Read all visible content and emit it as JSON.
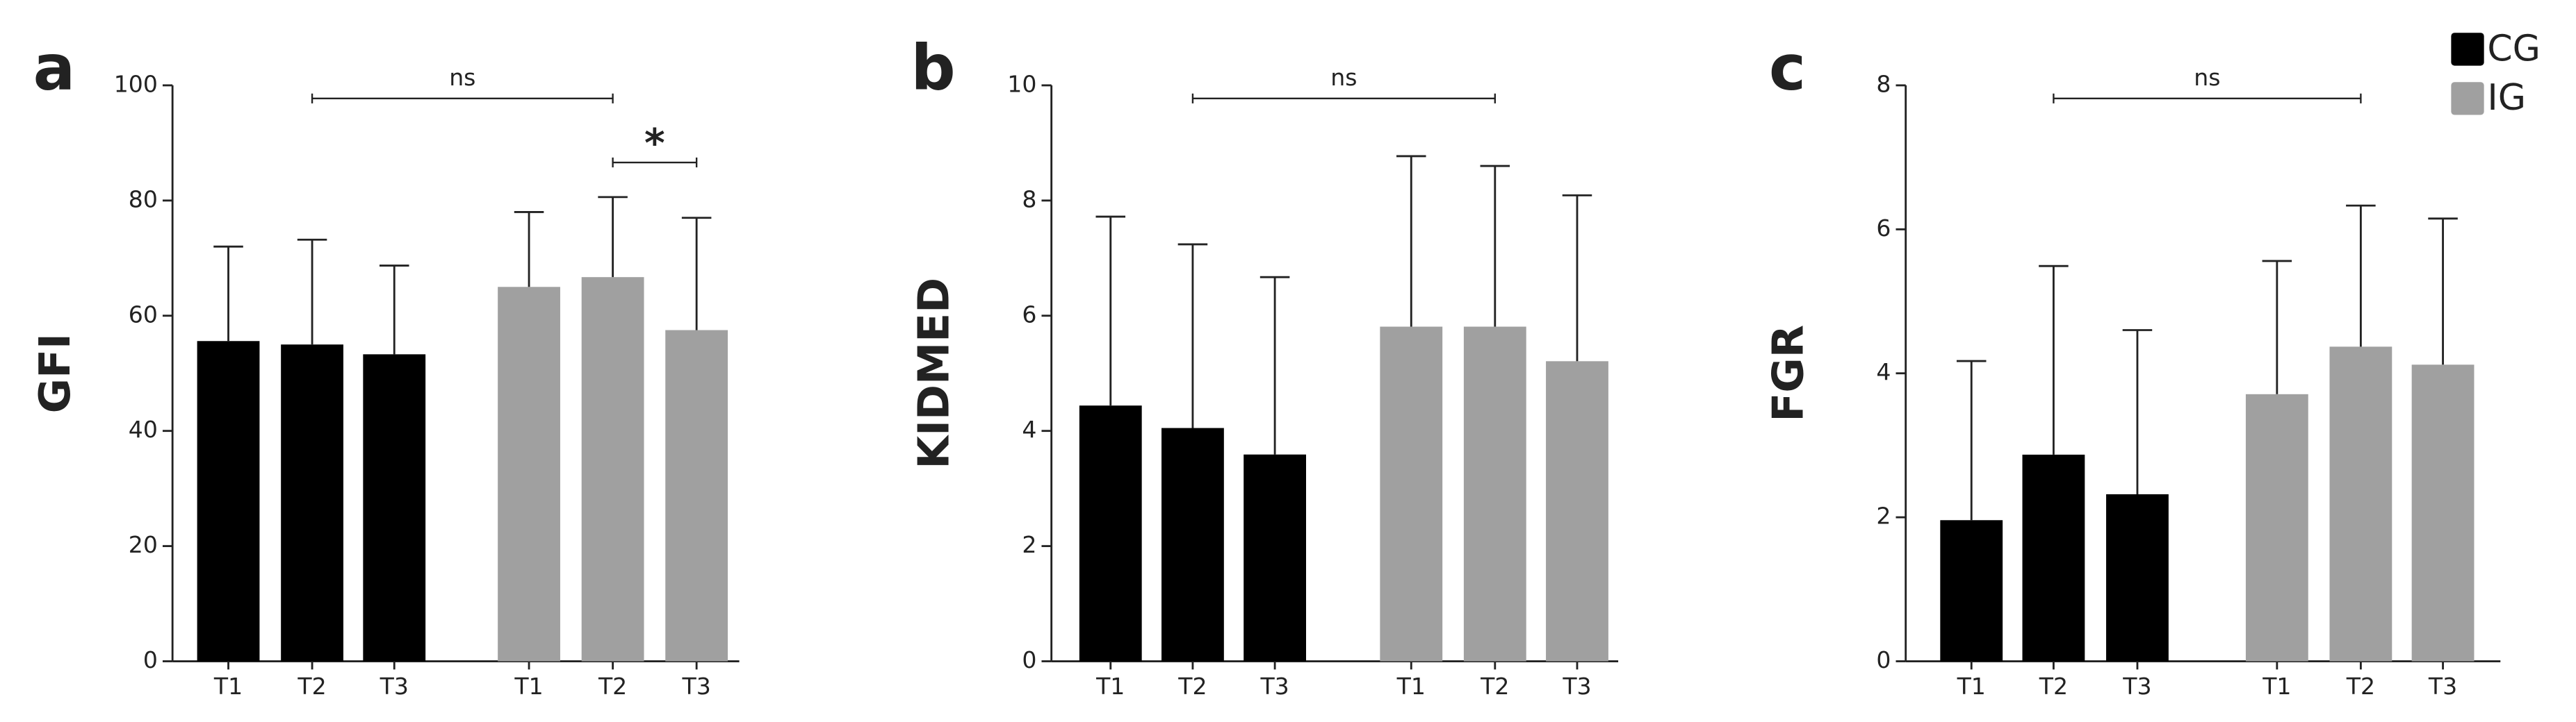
{
  "chart_data": [
    {
      "type": "bar",
      "panel": "a",
      "ylabel": "GFI",
      "categories": [
        "T1",
        "T2",
        "T3",
        "T1",
        "T2",
        "T3"
      ],
      "series": [
        {
          "name": "CG",
          "color": "#000000",
          "values": [
            55.6,
            55,
            53.3,
            null,
            null,
            null
          ],
          "errors": [
            16.4,
            18.2,
            15.4,
            null,
            null,
            null
          ]
        },
        {
          "name": "IG",
          "color": "#a0a0a0",
          "values": [
            null,
            null,
            null,
            65,
            66.7,
            57.5
          ],
          "errors": [
            null,
            null,
            null,
            13,
            13.9,
            19.5
          ]
        }
      ],
      "ylim": [
        0,
        100
      ],
      "yticks": [
        0,
        20,
        40,
        60,
        80,
        100
      ],
      "annotations": [
        "ns",
        "*"
      ]
    },
    {
      "type": "bar",
      "panel": "b",
      "ylabel": "KIDMED",
      "categories": [
        "T1",
        "T2",
        "T3",
        "T1",
        "T2",
        "T3"
      ],
      "series": [
        {
          "name": "CG",
          "color": "#000000",
          "values": [
            4.44,
            4.05,
            3.59,
            null,
            null,
            null
          ],
          "errors": [
            3.28,
            3.19,
            3.08,
            null,
            null,
            null
          ]
        },
        {
          "name": "IG",
          "color": "#a0a0a0",
          "values": [
            null,
            null,
            null,
            5.81,
            5.81,
            5.21
          ],
          "errors": [
            null,
            null,
            null,
            2.96,
            2.79,
            2.88
          ]
        }
      ],
      "ylim": [
        0,
        10
      ],
      "yticks": [
        0,
        2,
        4,
        6,
        8,
        10
      ],
      "annotations": [
        "ns"
      ]
    },
    {
      "type": "bar",
      "panel": "c",
      "ylabel": "FGR",
      "categories": [
        "T1",
        "T2",
        "T3",
        "T1",
        "T2",
        "T3"
      ],
      "series": [
        {
          "name": "CG",
          "color": "#000000",
          "values": [
            1.96,
            2.87,
            2.32,
            null,
            null,
            null
          ],
          "errors": [
            2.21,
            2.62,
            2.28,
            null,
            null,
            null
          ]
        },
        {
          "name": "IG",
          "color": "#a0a0a0",
          "values": [
            null,
            null,
            null,
            3.71,
            4.37,
            4.12
          ],
          "errors": [
            null,
            null,
            null,
            1.85,
            1.96,
            2.03
          ]
        }
      ],
      "ylim": [
        0,
        8
      ],
      "yticks": [
        0,
        2,
        4,
        6,
        8
      ],
      "annotations": [
        "ns"
      ]
    }
  ]
}
